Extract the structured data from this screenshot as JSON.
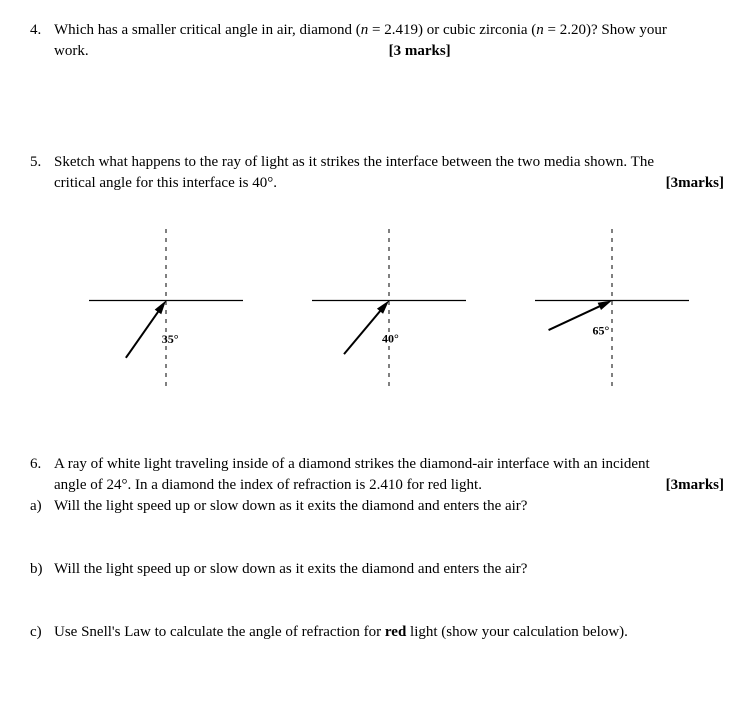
{
  "q4": {
    "number": "4.",
    "text_line1": "Which has a smaller critical angle in air, diamond (",
    "n_eq": "n",
    "val1": " = 2.419) or cubic zirconia (",
    "val2": " = 2.20)?  Show your",
    "text_line2_left": "work.",
    "marks": "[3 marks]"
  },
  "q5": {
    "number": "5.",
    "text_line1": "Sketch what happens to the ray of light as it strikes the interface between the two media shown. The",
    "text_line2": "critical angle for this interface is 40°.",
    "marks": "[3marks]",
    "diagrams": [
      {
        "angle_label": "35°",
        "angle_deg": 35,
        "arrow_at_top": true
      },
      {
        "angle_label": "40°",
        "angle_deg": 40,
        "arrow_at_top": true
      },
      {
        "angle_label": "65°",
        "angle_deg": 65,
        "arrow_at_top": true
      }
    ]
  },
  "q6": {
    "number": "6.",
    "text_line1": "A ray of white light traveling inside of a diamond strikes the diamond-air interface with an incident",
    "text_line2": "angle of 24°.  In a diamond the index of refraction is 2.410 for red light.",
    "marks": "[3marks]",
    "a": {
      "label": "a)",
      "text": "Will the light speed up or slow down as it exits the diamond and enters the air?"
    },
    "b": {
      "label": "b)",
      "text": "Will the light speed up or slow down as it exits the diamond and enters the air?"
    },
    "c": {
      "label": "c)",
      "text_pre": "Use Snell's Law to calculate the angle of refraction for ",
      "red": "red",
      "text_post": " light (show your calculation below)."
    }
  }
}
